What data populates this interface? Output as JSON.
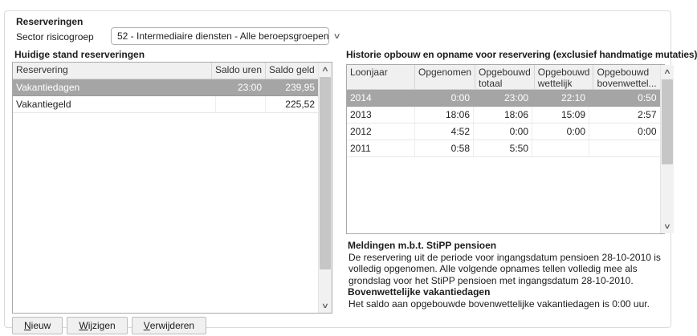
{
  "group": {
    "title": "Reserveringen"
  },
  "sector": {
    "label": "Sector risicogroep",
    "value": "52 - Intermediaire diensten - Alle beroepsgroepen"
  },
  "icons": {
    "chevron_down": "∨",
    "chevron_up": "∧"
  },
  "colors": {
    "selected_row_bg": "#a5a5a5",
    "selected_row_text": "#ffffff",
    "header_bg": "#f0f0f0",
    "table_border": "#a9a9a9",
    "groupbox_border": "#dadada"
  },
  "left_table": {
    "title": "Huidige stand reserveringen",
    "columns": [
      "Reservering",
      "Saldo uren",
      "Saldo geld"
    ],
    "rows": [
      {
        "selected": true,
        "cells": [
          "Vakantiedagen",
          "23:00",
          "239,95"
        ]
      },
      {
        "selected": false,
        "cells": [
          "Vakantiegeld",
          "",
          "225,52"
        ]
      }
    ]
  },
  "right_table": {
    "title": "Historie opbouw en opname voor reservering (exclusief handmatige mutaties)",
    "columns": [
      "Loonjaar",
      "Opgenomen",
      "Opgebouwd totaal",
      "Opgebouwd wettelijk",
      "Opgebouwd bovenwettel..."
    ],
    "rows": [
      {
        "selected": true,
        "cells": [
          "2014",
          "0:00",
          "23:00",
          "22:10",
          "0:50"
        ]
      },
      {
        "selected": false,
        "cells": [
          "2013",
          "18:06",
          "18:06",
          "15:09",
          "2:57"
        ]
      },
      {
        "selected": false,
        "cells": [
          "2012",
          "4:52",
          "0:00",
          "0:00",
          "0:00"
        ]
      },
      {
        "selected": false,
        "cells": [
          "2011",
          "0:58",
          "5:50",
          "",
          ""
        ]
      }
    ]
  },
  "buttons": [
    {
      "key": "N",
      "rest": "ieuw"
    },
    {
      "key": "W",
      "rest": "ijzigen"
    },
    {
      "key": "V",
      "rest": "erwijderen"
    }
  ],
  "meldingen": {
    "heading1": "Meldingen m.b.t. StiPP pensioen",
    "body1": "De reservering uit de periode voor ingangsdatum pensioen 28-10-2010 is volledig opgenomen. Alle volgende opnames tellen volledig mee als grondslag voor het StiPP pensioen met ingangsdatum 28-10-2010.",
    "heading2": "Bovenwettelijke vakantiedagen",
    "body2": "Het saldo aan opgebouwde bovenwettelijke vakantiedagen is 0:00 uur."
  }
}
